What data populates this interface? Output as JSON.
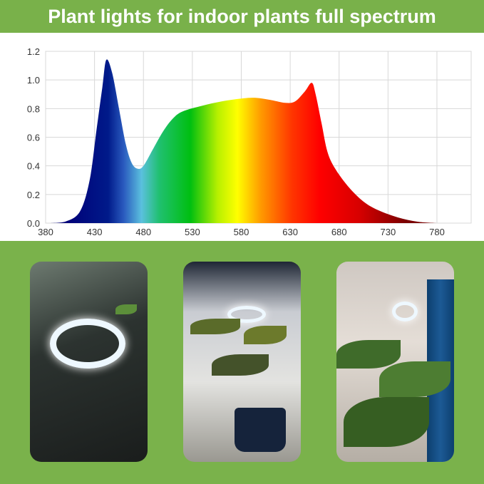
{
  "banner": {
    "title": "Plant lights for indoor plants full spectrum"
  },
  "colors": {
    "background_green": "#7ab24b",
    "banner_green": "#79b14a"
  },
  "chart_data": {
    "type": "area",
    "title": "",
    "xlabel": "",
    "ylabel": "",
    "xlim": [
      380,
      815
    ],
    "ylim": [
      0,
      1.2
    ],
    "grid": true,
    "x_ticks": [
      380,
      430,
      480,
      530,
      580,
      630,
      680,
      730,
      780
    ],
    "y_ticks": [
      "0.0",
      "0.2",
      "0.4",
      "0.6",
      "0.8",
      "1.0",
      "1.2"
    ],
    "fill": "visible spectrum gradient",
    "x": [
      385,
      400,
      415,
      425,
      432,
      438,
      442,
      448,
      455,
      462,
      468,
      474,
      480,
      490,
      500,
      510,
      520,
      540,
      560,
      580,
      595,
      610,
      625,
      635,
      645,
      652,
      656,
      662,
      668,
      676,
      690,
      705,
      720,
      740,
      760,
      780
    ],
    "y": [
      0,
      0.01,
      0.08,
      0.3,
      0.65,
      0.95,
      1.14,
      1.05,
      0.8,
      0.55,
      0.42,
      0.38,
      0.4,
      0.52,
      0.64,
      0.73,
      0.78,
      0.82,
      0.85,
      0.87,
      0.875,
      0.86,
      0.84,
      0.85,
      0.92,
      0.98,
      0.9,
      0.7,
      0.5,
      0.38,
      0.25,
      0.15,
      0.09,
      0.04,
      0.01,
      0
    ]
  },
  "photos": [
    {
      "alt": "ring light over plants on wire shelf"
    },
    {
      "alt": "ring light above potted plant"
    },
    {
      "alt": "ring light near large leafy plant by curtain"
    }
  ]
}
